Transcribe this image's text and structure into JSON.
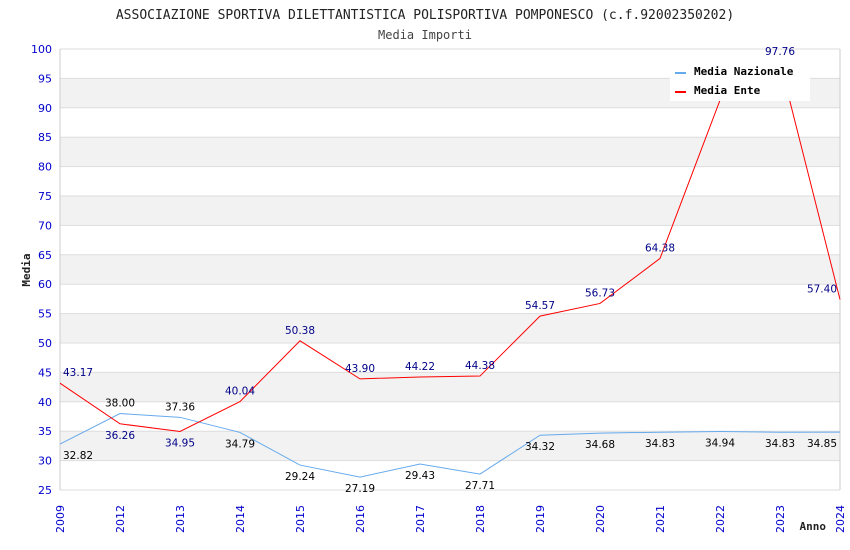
{
  "chart_data": {
    "type": "line",
    "title": "ASSOCIAZIONE SPORTIVA DILETTANTISTICA POLISPORTIVA POMPONESCO (c.f.92002350202)",
    "subtitle": "Media Importi",
    "xlabel": "Anno",
    "ylabel": "Media",
    "ylim": [
      25,
      100
    ],
    "yticks": [
      "25",
      "30",
      "35",
      "40",
      "45",
      "50",
      "55",
      "60",
      "65",
      "70",
      "75",
      "80",
      "85",
      "90",
      "95",
      "100"
    ],
    "categories": [
      "2009",
      "2012",
      "2013",
      "2014",
      "2015",
      "2016",
      "2017",
      "2018",
      "2019",
      "2020",
      "2021",
      "2022",
      "2023",
      "2024"
    ],
    "legend_position": "top-right",
    "series": [
      {
        "name": "Media Nazionale",
        "color": "#66aaee",
        "label_color": "#000000",
        "values": [
          32.82,
          38.0,
          37.36,
          34.79,
          29.24,
          27.19,
          29.43,
          27.71,
          34.32,
          34.68,
          34.83,
          34.94,
          34.83,
          34.85
        ],
        "labels": [
          "32.82",
          "38.00",
          "37.36",
          "34.79",
          "29.24",
          "27.19",
          "29.43",
          "27.71",
          "34.32",
          "34.68",
          "34.83",
          "34.94",
          "34.83",
          "34.85"
        ]
      },
      {
        "name": "Media Ente",
        "color": "#ff0000",
        "label_color": "#000088",
        "values": [
          43.17,
          36.26,
          34.95,
          40.04,
          50.38,
          43.9,
          44.22,
          44.38,
          54.57,
          56.73,
          64.38,
          91.3,
          97.76,
          57.4
        ],
        "labels": [
          "43.17",
          "36.26",
          "34.95",
          "40.04",
          "50.38",
          "43.90",
          "44.22",
          "44.38",
          "54.57",
          "56.73",
          "64.38",
          "",
          "97.76",
          "57.40"
        ]
      }
    ]
  }
}
